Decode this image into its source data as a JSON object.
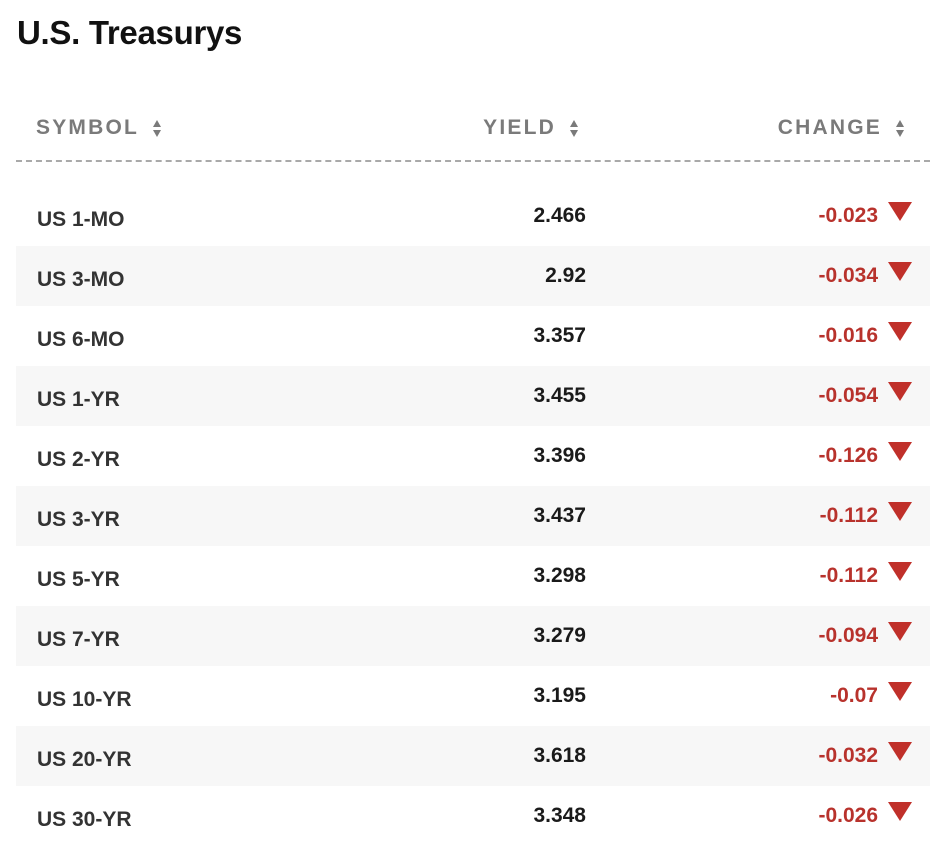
{
  "title": "U.S. Treasurys",
  "columns": {
    "symbol": "SYMBOL",
    "yield": "YIELD",
    "change": "CHANGE"
  },
  "colors": {
    "negative": "#b8322c",
    "header_text": "#7a7a7a",
    "row_alt_bg": "#f7f7f7"
  },
  "icons": {
    "sort": "sort-arrows-icon",
    "change_direction": "triangle-down-icon"
  },
  "rows": [
    {
      "symbol": "US 1-MO",
      "yield": "2.466",
      "change": "-0.023"
    },
    {
      "symbol": "US 3-MO",
      "yield": "2.92",
      "change": "-0.034"
    },
    {
      "symbol": "US 6-MO",
      "yield": "3.357",
      "change": "-0.016"
    },
    {
      "symbol": "US 1-YR",
      "yield": "3.455",
      "change": "-0.054"
    },
    {
      "symbol": "US 2-YR",
      "yield": "3.396",
      "change": "-0.126"
    },
    {
      "symbol": "US 3-YR",
      "yield": "3.437",
      "change": "-0.112"
    },
    {
      "symbol": "US 5-YR",
      "yield": "3.298",
      "change": "-0.112"
    },
    {
      "symbol": "US 7-YR",
      "yield": "3.279",
      "change": "-0.094"
    },
    {
      "symbol": "US 10-YR",
      "yield": "3.195",
      "change": "-0.07"
    },
    {
      "symbol": "US 20-YR",
      "yield": "3.618",
      "change": "-0.032"
    },
    {
      "symbol": "US 30-YR",
      "yield": "3.348",
      "change": "-0.026"
    }
  ]
}
